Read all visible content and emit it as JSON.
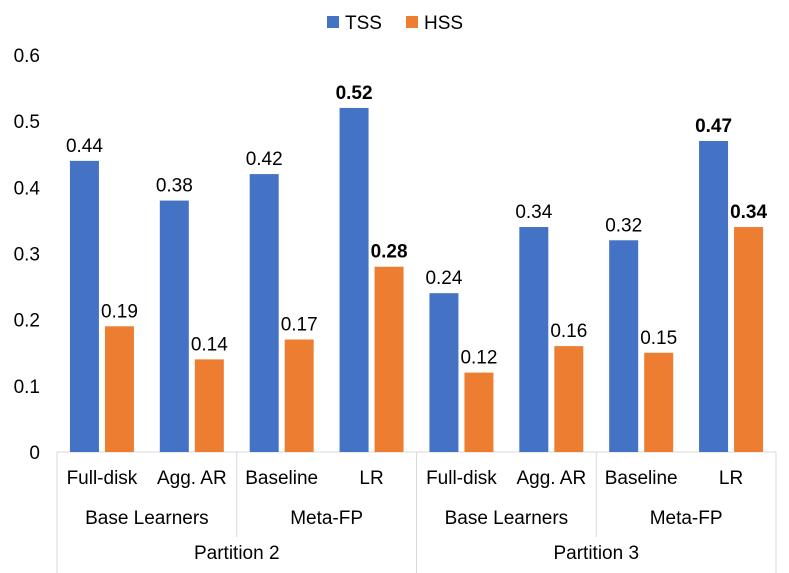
{
  "chart_data": {
    "type": "bar",
    "ylim": [
      0,
      0.6
    ],
    "yticks": [
      "0",
      "0.1",
      "0.2",
      "0.3",
      "0.4",
      "0.5",
      "0.6"
    ],
    "grid": false,
    "legend": {
      "position": "top-center"
    },
    "categories": [
      "Full-disk",
      "Agg. AR",
      "Baseline",
      "LR",
      "Full-disk",
      "Agg. AR",
      "Baseline",
      "LR"
    ],
    "groups": [
      {
        "label": "Base Learners",
        "span": 2
      },
      {
        "label": "Meta-FP",
        "span": 2
      },
      {
        "label": "Base Learners",
        "span": 2
      },
      {
        "label": "Meta-FP",
        "span": 2
      }
    ],
    "partitions": [
      {
        "label": "Partition 2",
        "span": 4
      },
      {
        "label": "Partition 3",
        "span": 4
      }
    ],
    "series": [
      {
        "name": "TSS",
        "color": "#4472C4",
        "values": [
          0.44,
          0.38,
          0.42,
          0.52,
          0.24,
          0.34,
          0.32,
          0.47
        ],
        "labels": [
          "0.44",
          "0.38",
          "0.42",
          "0.52",
          "0.24",
          "0.34",
          "0.32",
          "0.47"
        ],
        "bold": [
          false,
          false,
          false,
          true,
          false,
          false,
          false,
          true
        ]
      },
      {
        "name": "HSS",
        "color": "#ED7D31",
        "values": [
          0.19,
          0.14,
          0.17,
          0.28,
          0.12,
          0.16,
          0.15,
          0.34
        ],
        "labels": [
          "0.19",
          "0.14",
          "0.17",
          "0.28",
          "0.12",
          "0.16",
          "0.15",
          "0.34"
        ],
        "bold": [
          false,
          false,
          false,
          true,
          false,
          false,
          false,
          true
        ]
      }
    ]
  }
}
